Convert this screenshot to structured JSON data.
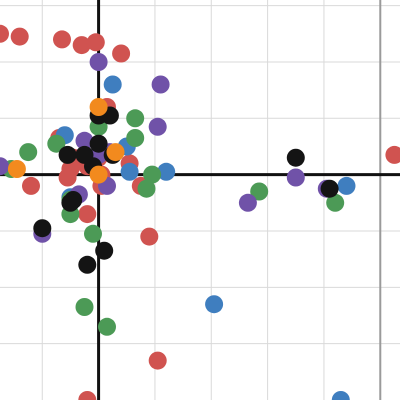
{
  "chart_data": {
    "type": "scatter",
    "grid": true,
    "xlim": [
      -1.75,
      5.35
    ],
    "ylim": [
      -4.0,
      3.1
    ],
    "xticks": [
      -1,
      0,
      1,
      2,
      3,
      4,
      5
    ],
    "yticks": [
      -3,
      -2,
      -1,
      0,
      1,
      2,
      3
    ],
    "axes_lines": {
      "x_at": 0,
      "y_at": 0
    },
    "right_edge_line_x": 5.0,
    "colors": {
      "red": "#d05350",
      "blue": "#3f7ebf",
      "green": "#4c9a56",
      "purple": "#7052a8",
      "black": "#141414",
      "orange": "#f28a1e"
    },
    "series": [
      {
        "color": "red",
        "points": [
          [
            -1.75,
            2.5
          ],
          [
            -1.4,
            2.45
          ],
          [
            -0.65,
            2.4
          ],
          [
            -0.3,
            2.3
          ],
          [
            -0.05,
            2.35
          ],
          [
            0.4,
            2.15
          ],
          [
            0.15,
            1.2
          ],
          [
            -0.7,
            0.65
          ],
          [
            -0.45,
            0.3
          ],
          [
            -0.5,
            0.1
          ],
          [
            -0.25,
            0.3
          ],
          [
            0.05,
            0.0
          ],
          [
            0.0,
            0.3
          ],
          [
            -0.2,
            0.15
          ],
          [
            -0.1,
            0.25
          ],
          [
            -0.55,
            -0.05
          ],
          [
            0.05,
            -0.05
          ],
          [
            0.55,
            0.2
          ],
          [
            0.75,
            -0.2
          ],
          [
            -1.2,
            -0.2
          ],
          [
            0.05,
            -0.2
          ],
          [
            -0.2,
            -0.7
          ],
          [
            0.9,
            -1.1
          ],
          [
            1.05,
            -3.3
          ],
          [
            -0.2,
            -4.0
          ],
          [
            5.25,
            0.35
          ]
        ]
      },
      {
        "color": "blue",
        "points": [
          [
            0.25,
            1.6
          ],
          [
            0.5,
            0.5
          ],
          [
            -0.6,
            0.7
          ],
          [
            0.55,
            0.05
          ],
          [
            1.2,
            0.05
          ],
          [
            -0.5,
            -0.4
          ],
          [
            4.4,
            -0.2
          ],
          [
            2.05,
            -2.3
          ],
          [
            4.3,
            -4.0
          ]
        ]
      },
      {
        "color": "green",
        "points": [
          [
            0.65,
            1.0
          ],
          [
            0.0,
            0.85
          ],
          [
            0.65,
            0.65
          ],
          [
            -0.75,
            0.55
          ],
          [
            -1.25,
            0.4
          ],
          [
            -1.55,
            0.1
          ],
          [
            0.95,
            0.0
          ],
          [
            0.85,
            -0.25
          ],
          [
            2.85,
            -0.3
          ],
          [
            4.2,
            -0.5
          ],
          [
            -0.5,
            -0.7
          ],
          [
            -0.1,
            -1.05
          ],
          [
            -0.25,
            -2.35
          ],
          [
            0.15,
            -2.7
          ],
          [
            -0.5,
            -0.45
          ]
        ]
      },
      {
        "color": "purple",
        "points": [
          [
            0.0,
            2.0
          ],
          [
            1.1,
            1.6
          ],
          [
            1.05,
            0.85
          ],
          [
            -0.25,
            0.6
          ],
          [
            0.2,
            0.4
          ],
          [
            0.0,
            0.35
          ],
          [
            -0.35,
            -0.35
          ],
          [
            0.15,
            -0.2
          ],
          [
            -1.75,
            0.15
          ],
          [
            -1.0,
            -1.05
          ],
          [
            3.5,
            -0.05
          ],
          [
            4.05,
            -0.25
          ],
          [
            2.65,
            -0.5
          ]
        ]
      },
      {
        "color": "black",
        "points": [
          [
            0.0,
            1.05
          ],
          [
            0.2,
            1.05
          ],
          [
            0.0,
            0.55
          ],
          [
            -0.55,
            0.35
          ],
          [
            -0.25,
            0.35
          ],
          [
            0.25,
            0.35
          ],
          [
            -0.1,
            0.15
          ],
          [
            3.5,
            0.3
          ],
          [
            4.1,
            -0.25
          ],
          [
            -0.45,
            -0.45
          ],
          [
            -0.5,
            -0.5
          ],
          [
            -1.0,
            -0.95
          ],
          [
            0.1,
            -1.35
          ],
          [
            -0.2,
            -1.6
          ]
        ]
      },
      {
        "color": "orange",
        "points": [
          [
            0.0,
            1.2
          ],
          [
            0.3,
            0.4
          ],
          [
            -1.45,
            0.1
          ],
          [
            0.0,
            0.0
          ]
        ]
      }
    ]
  }
}
